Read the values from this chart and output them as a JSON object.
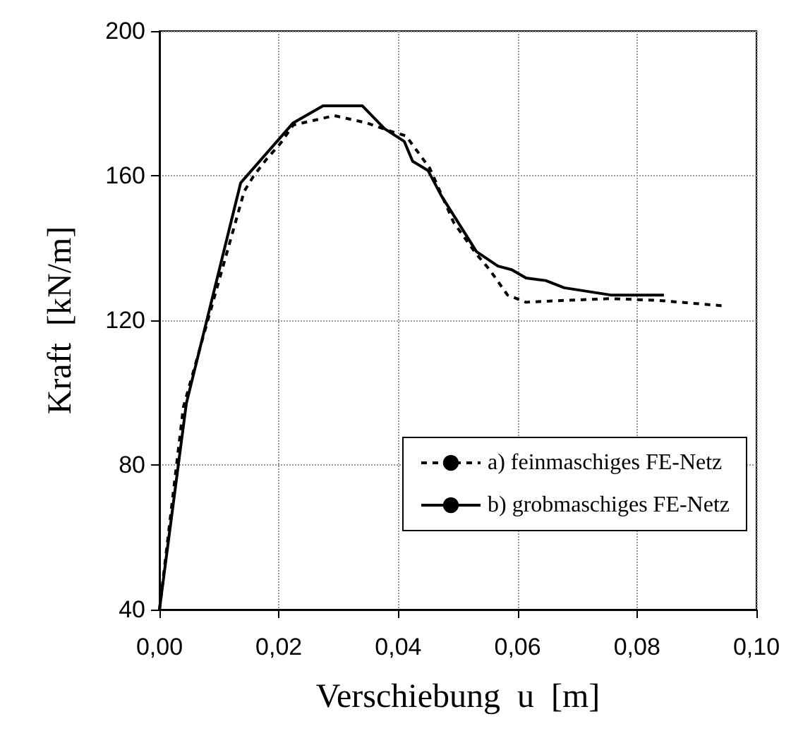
{
  "chart_data": {
    "type": "line",
    "xlabel": "Verschiebung  u  [m]",
    "ylabel": "Kraft  [kN/m]",
    "xlim": [
      0,
      0.1
    ],
    "xticks": [
      {
        "value": 0,
        "label": "0,00"
      },
      {
        "value": 0.02,
        "label": "0,02"
      },
      {
        "value": 0.04,
        "label": "0,04"
      },
      {
        "value": 0.06,
        "label": "0,06"
      },
      {
        "value": 0.08,
        "label": "0,08"
      },
      {
        "value": 0.1,
        "label": "0,10"
      }
    ],
    "ylim": [
      40,
      200
    ],
    "yticks": [
      40,
      80,
      120,
      160,
      200
    ],
    "grid": true,
    "legend": "bottom right",
    "marker": "none",
    "series": [
      {
        "name": "a) feinmaschiges FE-Netz",
        "color": "#000000",
        "line_style": "dashed",
        "x": [
          0,
          0.004,
          0.0142,
          0.0158,
          0.018,
          0.0203,
          0.0224,
          0.0293,
          0.0347,
          0.0387,
          0.0413,
          0.0453,
          0.0493,
          0.0531,
          0.0553,
          0.0583,
          0.0614,
          0.0678,
          0.0756,
          0.0836,
          0.0945
        ],
        "values": [
          40,
          96,
          155.7,
          160,
          164.7,
          169,
          174,
          176.6,
          174.6,
          172.3,
          171,
          162,
          147,
          138.3,
          134,
          127,
          125,
          125.5,
          126,
          125.5,
          124
        ]
      },
      {
        "name": "b) grobmaschiges FE-Netz",
        "color": "#000000",
        "line_style": "solid",
        "x": [
          0,
          0.0045,
          0.0136,
          0.0224,
          0.0274,
          0.034,
          0.0377,
          0.041,
          0.0424,
          0.045,
          0.0472,
          0.0531,
          0.0567,
          0.059,
          0.0614,
          0.0647,
          0.0678,
          0.0756,
          0.0845
        ],
        "values": [
          40,
          97,
          158,
          174.6,
          179.3,
          179.3,
          173,
          169.5,
          164,
          161.4,
          154.5,
          139,
          135,
          134,
          131.7,
          131,
          129,
          127,
          127
        ]
      }
    ]
  }
}
